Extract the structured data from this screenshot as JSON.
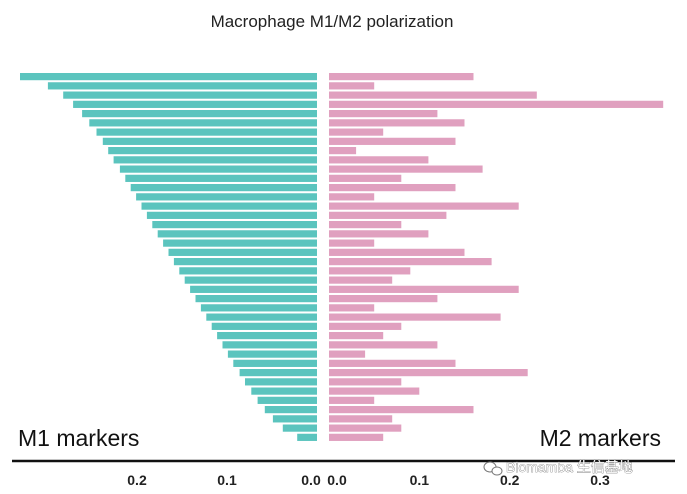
{
  "chart_data": {
    "type": "bar",
    "orientation": "horizontal-diverging",
    "title": "Macrophage M1/M2 polarization",
    "left_label": "M1 markers",
    "right_label": "M2 markers",
    "left_axis": {
      "range": [
        0,
        0.33
      ],
      "ticks": [
        0.2,
        0.1,
        0.0
      ]
    },
    "right_axis": {
      "range": [
        0,
        0.38
      ],
      "ticks": [
        0.0,
        0.1,
        0.2,
        0.3
      ]
    },
    "series": [
      {
        "name": "M1 markers",
        "color": "#5bc4be",
        "values": [
          0.33,
          0.299,
          0.282,
          0.271,
          0.261,
          0.253,
          0.245,
          0.238,
          0.232,
          0.226,
          0.219,
          0.213,
          0.207,
          0.201,
          0.195,
          0.189,
          0.183,
          0.177,
          0.171,
          0.165,
          0.159,
          0.153,
          0.147,
          0.141,
          0.135,
          0.129,
          0.123,
          0.117,
          0.111,
          0.105,
          0.099,
          0.093,
          0.086,
          0.08,
          0.073,
          0.066,
          0.058,
          0.049,
          0.038,
          0.022
        ]
      },
      {
        "name": "M2 markers",
        "color": "#e0a0bf",
        "values": [
          0.16,
          0.05,
          0.23,
          0.37,
          0.12,
          0.15,
          0.06,
          0.14,
          0.03,
          0.11,
          0.17,
          0.08,
          0.14,
          0.05,
          0.21,
          0.13,
          0.08,
          0.11,
          0.05,
          0.15,
          0.18,
          0.09,
          0.07,
          0.21,
          0.12,
          0.05,
          0.19,
          0.08,
          0.06,
          0.12,
          0.04,
          0.14,
          0.22,
          0.08,
          0.1,
          0.05,
          0.16,
          0.07,
          0.08,
          0.06
        ]
      }
    ],
    "legend": "none",
    "grid": false
  },
  "watermark": {
    "text": "Biomamba 生信基地"
  }
}
